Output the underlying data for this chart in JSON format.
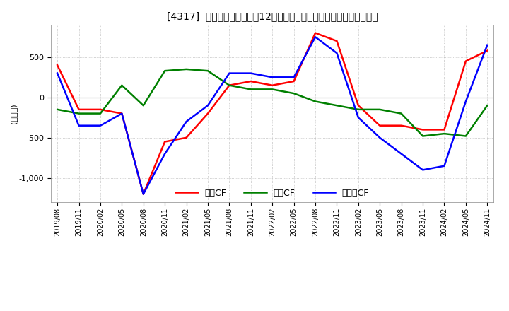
{
  "title": "[4317]  キャッシュフローの12か月移動合計の対前年同期増減額の推移",
  "ylabel": "(百万円)",
  "ylim": [
    -1300,
    900
  ],
  "yticks": [
    -1000,
    -500,
    0,
    500
  ],
  "bg_color": "#ffffff",
  "plot_bg_color": "#ffffff",
  "legend_labels": [
    "営業CF",
    "投資CF",
    "フリーCF"
  ],
  "line_colors": [
    "#ff0000",
    "#008000",
    "#0000ff"
  ],
  "x_labels": [
    "2019/08",
    "2019/11",
    "2020/02",
    "2020/05",
    "2020/08",
    "2020/11",
    "2021/02",
    "2021/05",
    "2021/08",
    "2021/11",
    "2022/02",
    "2022/05",
    "2022/08",
    "2022/11",
    "2023/02",
    "2023/05",
    "2023/08",
    "2023/11",
    "2024/02",
    "2024/05",
    "2024/11"
  ],
  "operating_cf": [
    400,
    -150,
    -150,
    -200,
    -1200,
    -550,
    -500,
    -200,
    150,
    200,
    150,
    200,
    800,
    700,
    -100,
    -350,
    -350,
    -400,
    -400,
    450,
    580
  ],
  "investing_cf": [
    -150,
    -200,
    -200,
    150,
    -100,
    330,
    350,
    330,
    150,
    100,
    100,
    50,
    -50,
    -100,
    -150,
    -150,
    -200,
    -480,
    -450,
    -480,
    -100
  ],
  "free_cf": [
    300,
    -350,
    -350,
    -200,
    -1200,
    -700,
    -300,
    -100,
    300,
    300,
    250,
    250,
    750,
    550,
    -250,
    -500,
    -700,
    -900,
    -850,
    -50,
    650
  ]
}
